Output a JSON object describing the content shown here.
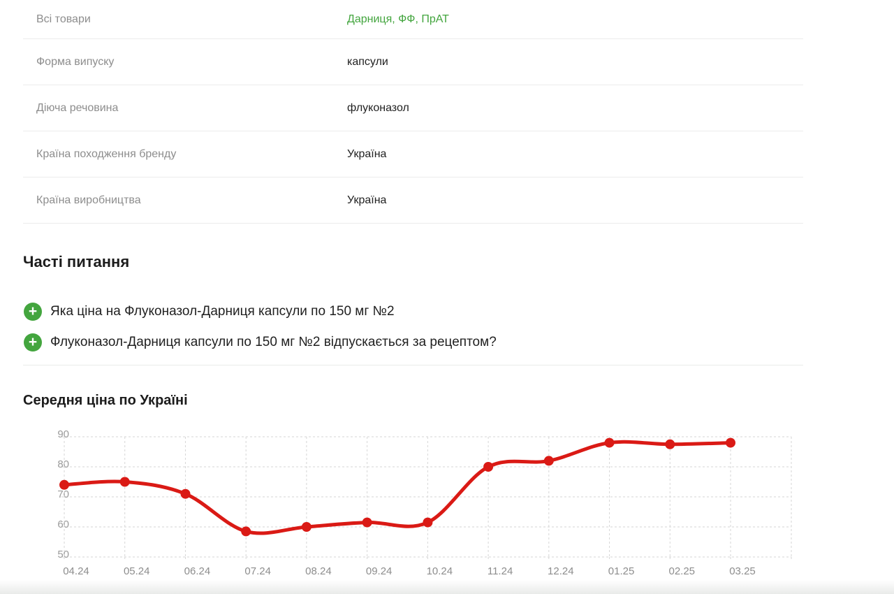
{
  "colors": {
    "accent_green": "#43a53e",
    "chart_red": "#da1a15",
    "label_gray": "#8d8d8d",
    "divider": "#ececec"
  },
  "icons": {
    "faq_expand": "plus-circle-icon"
  },
  "spec_table": {
    "rows": [
      {
        "label": "Всі товари",
        "value": "Дарниця, ФФ, ПрАТ"
      },
      {
        "label": "Форма випуску",
        "value": "капсули"
      },
      {
        "label": "Діюча речовина",
        "value": "флуконазол"
      },
      {
        "label": "Країна походження бренду",
        "value": "Україна"
      },
      {
        "label": "Країна виробництва",
        "value": "Україна"
      }
    ]
  },
  "faq": {
    "title": "Часті питання",
    "items": [
      {
        "question": "Яка ціна на Флуконазол-Дарниця капсули по 150 мг №2"
      },
      {
        "question": "Флуконазол-Дарниця капсули по 150 мг №2 відпускається за рецептом?"
      }
    ]
  },
  "chart_section": {
    "title": "Середня ціна по Україні"
  },
  "chart_data": {
    "type": "line",
    "title": "Середня ціна по Україні",
    "categories": [
      "04.24",
      "05.24",
      "06.24",
      "07.24",
      "08.24",
      "09.24",
      "10.24",
      "11.24",
      "12.24",
      "01.25",
      "02.25",
      "03.25"
    ],
    "values": [
      74,
      75,
      71,
      58.5,
      60,
      61.5,
      61.5,
      80,
      82,
      88,
      87.5,
      88
    ],
    "xlabel": "",
    "ylabel": "",
    "ylim": [
      50,
      90
    ],
    "yticks": [
      50,
      60,
      70,
      80,
      90
    ],
    "grid": true,
    "legend": false,
    "smooth": true,
    "line_color": "#da1a15",
    "marker": "circle"
  }
}
